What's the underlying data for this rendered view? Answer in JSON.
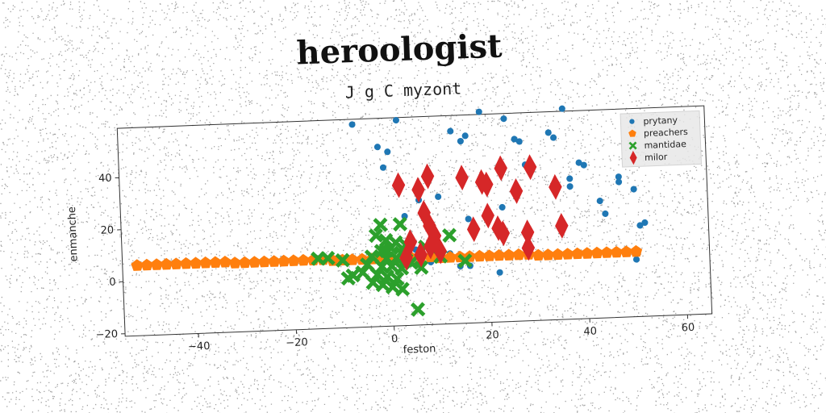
{
  "title": "heroologist",
  "subtitle": "J g C myzont",
  "colors": {
    "prytany": "#1f77b4",
    "preachers": "#ff7f0e",
    "mantidae": "#2ca02c",
    "milor": "#d62728"
  },
  "chart_data": {
    "type": "scatter",
    "xlabel": "feston",
    "ylabel": "enmanche",
    "xlim": [
      -55,
      65
    ],
    "ylim": [
      -21,
      59
    ],
    "xticks": [
      -40,
      -20,
      0,
      20,
      40,
      60
    ],
    "yticks": [
      -20,
      0,
      20,
      40
    ],
    "grid": false,
    "legend": "top-right",
    "series": [
      {
        "name": "prytany",
        "marker": "circle",
        "points": [
          [
            -7,
            57
          ],
          [
            2,
            58
          ],
          [
            -2,
            48
          ],
          [
            0,
            46
          ],
          [
            -1,
            40
          ],
          [
            13,
            53
          ],
          [
            15,
            49
          ],
          [
            16,
            51
          ],
          [
            19,
            60
          ],
          [
            20,
            22
          ],
          [
            23,
            23
          ],
          [
            24,
            57
          ],
          [
            26,
            49
          ],
          [
            27,
            48
          ],
          [
            28,
            39
          ],
          [
            33,
            51
          ],
          [
            34,
            49
          ],
          [
            36,
            60
          ],
          [
            37,
            30
          ],
          [
            37,
            33
          ],
          [
            39,
            39
          ],
          [
            40,
            38
          ],
          [
            43,
            24
          ],
          [
            44,
            19
          ],
          [
            47,
            33
          ],
          [
            47,
            31
          ],
          [
            50,
            28
          ],
          [
            51,
            14
          ],
          [
            52,
            15
          ],
          [
            50,
            1
          ],
          [
            14,
            1
          ],
          [
            12,
            6
          ],
          [
            10,
            4
          ],
          [
            8,
            3
          ],
          [
            5,
            8
          ],
          [
            16,
            19
          ],
          [
            6,
            27
          ],
          [
            10,
            28
          ],
          [
            3,
            21
          ],
          [
            22,
            -2
          ],
          [
            16,
            1
          ]
        ]
      },
      {
        "name": "preachers",
        "marker": "pentagon",
        "points": [
          [
            -52,
            6
          ],
          [
            -50,
            6
          ],
          [
            -48,
            6
          ],
          [
            -46,
            6
          ],
          [
            -44,
            6
          ],
          [
            -42,
            6
          ],
          [
            -40,
            6
          ],
          [
            -38,
            6
          ],
          [
            -36,
            6
          ],
          [
            -34,
            6
          ],
          [
            -32,
            5.5
          ],
          [
            -30,
            5.5
          ],
          [
            -28,
            5.5
          ],
          [
            -26,
            5.5
          ],
          [
            -24,
            5.5
          ],
          [
            -22,
            5.5
          ],
          [
            -20,
            5.5
          ],
          [
            -18,
            5.5
          ],
          [
            -16,
            5.5
          ],
          [
            -14,
            5.5
          ],
          [
            -12,
            5
          ],
          [
            -10,
            5
          ],
          [
            -8,
            5
          ],
          [
            -6,
            5
          ],
          [
            -4,
            5
          ],
          [
            -2,
            5
          ],
          [
            0,
            5
          ],
          [
            2,
            5
          ],
          [
            4,
            5
          ],
          [
            6,
            5
          ],
          [
            8,
            5
          ],
          [
            10,
            4.5
          ],
          [
            12,
            4.5
          ],
          [
            14,
            4.5
          ],
          [
            16,
            4.5
          ],
          [
            18,
            4.5
          ],
          [
            20,
            4.5
          ],
          [
            22,
            4.5
          ],
          [
            24,
            4.5
          ],
          [
            26,
            4.5
          ],
          [
            28,
            4.5
          ],
          [
            30,
            4
          ],
          [
            32,
            4
          ],
          [
            34,
            4
          ],
          [
            36,
            4
          ],
          [
            38,
            4
          ],
          [
            40,
            4
          ],
          [
            42,
            4
          ],
          [
            44,
            4
          ],
          [
            46,
            4
          ],
          [
            48,
            4
          ],
          [
            50,
            4
          ]
        ]
      },
      {
        "name": "mantidae",
        "marker": "x",
        "points": [
          [
            -2,
            18
          ],
          [
            2,
            18
          ],
          [
            -3,
            14
          ],
          [
            -1,
            12
          ],
          [
            1,
            11
          ],
          [
            0,
            9
          ],
          [
            -2,
            8
          ],
          [
            2,
            7
          ],
          [
            -4,
            6
          ],
          [
            -1,
            5
          ],
          [
            1,
            5
          ],
          [
            3,
            4
          ],
          [
            -5,
            3
          ],
          [
            -2,
            2
          ],
          [
            0,
            2
          ],
          [
            2,
            1
          ],
          [
            -6,
            0
          ],
          [
            -3,
            -1
          ],
          [
            -1,
            -2
          ],
          [
            1,
            -3
          ],
          [
            -4,
            -4
          ],
          [
            -2,
            -5
          ],
          [
            0,
            -6
          ],
          [
            2,
            -7
          ],
          [
            -8,
            -1
          ],
          [
            -10,
            5
          ],
          [
            -13,
            6
          ],
          [
            -15,
            6
          ],
          [
            -9,
            -2
          ],
          [
            5,
            -15
          ],
          [
            10,
            5
          ],
          [
            12,
            13
          ],
          [
            6,
            1
          ],
          [
            15,
            3
          ],
          [
            7,
            9
          ],
          [
            4,
            3
          ],
          [
            -1,
            8
          ],
          [
            3,
            10
          ]
        ]
      },
      {
        "name": "milor",
        "marker": "diamond",
        "points": [
          [
            2,
            33
          ],
          [
            6,
            31
          ],
          [
            8,
            36
          ],
          [
            15,
            35
          ],
          [
            19,
            33
          ],
          [
            20,
            32
          ],
          [
            23,
            38
          ],
          [
            26,
            29
          ],
          [
            29,
            38
          ],
          [
            34,
            30
          ],
          [
            7,
            22
          ],
          [
            8,
            17
          ],
          [
            9,
            13
          ],
          [
            4,
            11
          ],
          [
            6,
            6
          ],
          [
            8,
            9
          ],
          [
            10,
            7
          ],
          [
            17,
            15
          ],
          [
            20,
            20
          ],
          [
            22,
            15
          ],
          [
            23,
            13
          ],
          [
            28,
            13
          ],
          [
            35,
            15
          ],
          [
            28,
            7
          ],
          [
            3,
            5
          ]
        ]
      }
    ]
  }
}
